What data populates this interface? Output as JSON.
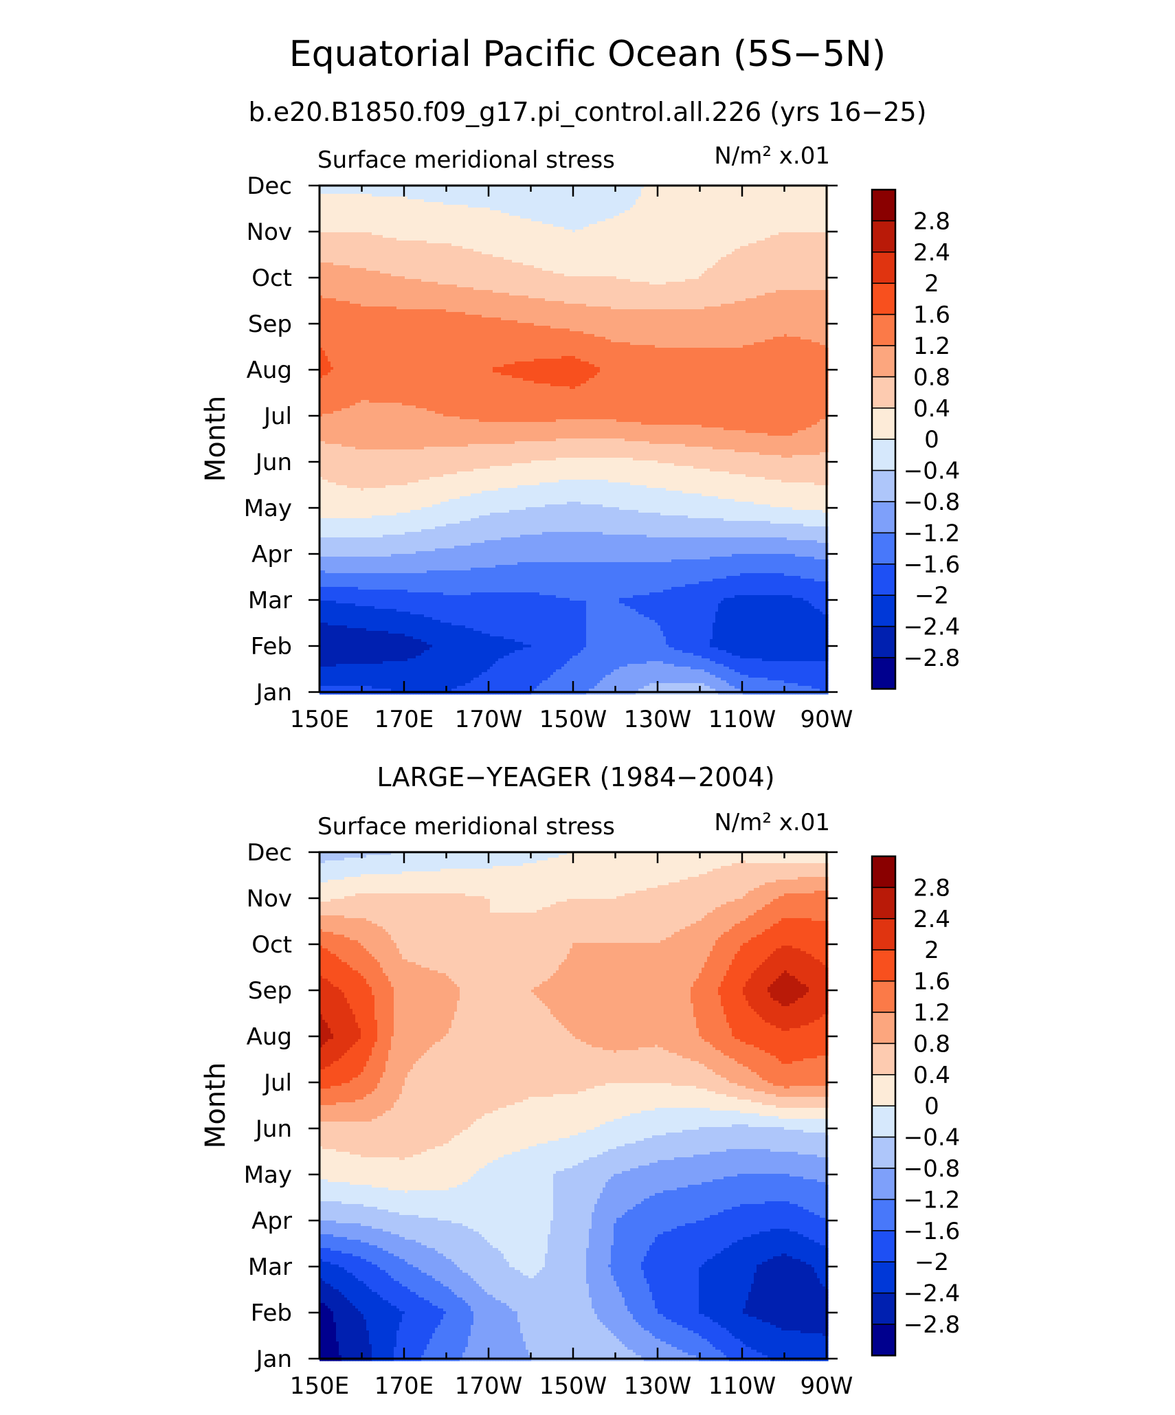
{
  "figure": {
    "title": "Equatorial Pacific Ocean (5S−5N)",
    "subtitle": "b.e20.B1850.f09_g17.pi_control.all.226 (yrs 16−25)"
  },
  "colors": {
    "levels_palette": [
      "#00008e",
      "#0020b0",
      "#0038d8",
      "#1e50f4",
      "#4878fa",
      "#7ea0fa",
      "#aec6fa",
      "#d6e8fc",
      "#fdebd8",
      "#fdcbb0",
      "#fca67e",
      "#fb7a48",
      "#f8501e",
      "#e03410",
      "#b91a08",
      "#8a0000"
    ]
  },
  "chart_data": [
    {
      "type": "heatmap",
      "panel_title": "",
      "inner_title_left": "Surface meridional stress",
      "inner_title_right": "N/m² x.01",
      "ylabel": "Month",
      "x_tick_labels": [
        "150E",
        "170E",
        "170W",
        "150W",
        "130W",
        "110W",
        "90W"
      ],
      "x_tick_values": [
        150,
        170,
        190,
        210,
        230,
        250,
        270
      ],
      "x_range": [
        150,
        270
      ],
      "y_tick_labels": [
        "Jan",
        "Feb",
        "Mar",
        "Apr",
        "May",
        "Jun",
        "Jul",
        "Aug",
        "Sep",
        "Oct",
        "Nov",
        "Dec"
      ],
      "colorbar_labels": [
        "2.8",
        "2.4",
        "2",
        "1.6",
        "1.2",
        "0.8",
        "0.4",
        "0",
        "−0.4",
        "−0.8",
        "−1.2",
        "−1.6",
        "−2",
        "−2.4",
        "−2.8"
      ],
      "levels": [
        -2.8,
        -2.4,
        -2.0,
        -1.6,
        -1.2,
        -0.8,
        -0.4,
        0,
        0.4,
        0.8,
        1.2,
        1.6,
        2.0,
        2.4,
        2.8
      ],
      "grid_lon": [
        150,
        160,
        170,
        180,
        190,
        200,
        210,
        220,
        230,
        240,
        250,
        260,
        270
      ],
      "values": [
        [
          -1.9,
          -1.9,
          -2.0,
          -2.0,
          -1.9,
          -1.6,
          -1.3,
          -1.0,
          -0.6,
          -0.5,
          -1.2,
          -1.4,
          -1.6
        ],
        [
          -2.8,
          -2.7,
          -2.6,
          -2.3,
          -2.1,
          -2.0,
          -1.7,
          -1.4,
          -1.5,
          -1.9,
          -2.3,
          -2.3,
          -2.2
        ],
        [
          -2.0,
          -1.9,
          -1.8,
          -1.7,
          -1.7,
          -1.7,
          -1.6,
          -1.6,
          -1.7,
          -1.9,
          -2.1,
          -2.1,
          -1.9
        ],
        [
          -0.7,
          -0.7,
          -0.8,
          -0.9,
          -1.0,
          -1.1,
          -1.1,
          -1.1,
          -1.1,
          -1.1,
          -1.2,
          -1.2,
          -1.1
        ],
        [
          0.2,
          0.2,
          0.1,
          -0.1,
          -0.3,
          -0.4,
          -0.5,
          -0.4,
          -0.3,
          -0.2,
          -0.1,
          0.0,
          0.1
        ],
        [
          0.5,
          0.7,
          0.7,
          0.6,
          0.5,
          0.4,
          0.3,
          0.3,
          0.4,
          0.5,
          0.6,
          0.7,
          0.7
        ],
        [
          1.2,
          1.1,
          1.1,
          1.2,
          1.3,
          1.3,
          1.3,
          1.3,
          1.4,
          1.4,
          1.5,
          1.6,
          1.2
        ],
        [
          1.7,
          1.4,
          1.5,
          1.5,
          1.6,
          1.7,
          1.8,
          1.5,
          1.4,
          1.4,
          1.4,
          1.5,
          1.3
        ],
        [
          1.5,
          1.4,
          1.4,
          1.4,
          1.3,
          1.2,
          1.1,
          1.0,
          1.0,
          1.0,
          1.0,
          1.1,
          1.1
        ],
        [
          1.0,
          0.9,
          0.8,
          0.7,
          0.6,
          0.5,
          0.4,
          0.4,
          0.3,
          0.4,
          0.6,
          0.7,
          0.7
        ],
        [
          0.4,
          0.4,
          0.3,
          0.3,
          0.2,
          0.1,
          0.0,
          0.1,
          0.1,
          0.2,
          0.3,
          0.4,
          0.4
        ],
        [
          -0.1,
          -0.1,
          -0.1,
          -0.2,
          -0.2,
          -0.3,
          -0.3,
          -0.2,
          0.1,
          0.1,
          0.0,
          0.0,
          0.0
        ]
      ]
    },
    {
      "type": "heatmap",
      "panel_title": "LARGE−YEAGER (1984−2004)",
      "inner_title_left": "Surface meridional stress",
      "inner_title_right": "N/m² x.01",
      "ylabel": "Month",
      "x_tick_labels": [
        "150E",
        "170E",
        "170W",
        "150W",
        "130W",
        "110W",
        "90W"
      ],
      "x_tick_values": [
        150,
        170,
        190,
        210,
        230,
        250,
        270
      ],
      "x_range": [
        150,
        270
      ],
      "y_tick_labels": [
        "Jan",
        "Feb",
        "Mar",
        "Apr",
        "May",
        "Jun",
        "Jul",
        "Aug",
        "Sep",
        "Oct",
        "Nov",
        "Dec"
      ],
      "colorbar_labels": [
        "2.8",
        "2.4",
        "2",
        "1.6",
        "1.2",
        "0.8",
        "0.4",
        "0",
        "−0.4",
        "−0.8",
        "−1.2",
        "−1.6",
        "−2",
        "−2.4",
        "−2.8"
      ],
      "levels": [
        -2.8,
        -2.4,
        -2.0,
        -1.6,
        -1.2,
        -0.8,
        -0.4,
        0,
        0.4,
        0.8,
        1.2,
        1.6,
        2.0,
        2.4,
        2.8
      ],
      "grid_lon": [
        150,
        160,
        170,
        180,
        190,
        200,
        210,
        220,
        230,
        240,
        250,
        260,
        270
      ],
      "values": [
        [
          -3.0,
          -2.6,
          -1.8,
          -1.3,
          -1.0,
          -0.8,
          -0.5,
          -0.6,
          -0.9,
          -1.2,
          -1.8,
          -2.1,
          -2.3
        ],
        [
          -3.0,
          -2.4,
          -2.0,
          -1.6,
          -1.0,
          -0.7,
          -0.6,
          -1.0,
          -1.6,
          -2.0,
          -2.4,
          -2.6,
          -2.5
        ],
        [
          -2.2,
          -1.8,
          -1.3,
          -0.9,
          -0.5,
          -0.3,
          -0.6,
          -1.3,
          -1.8,
          -2.0,
          -2.3,
          -2.6,
          -2.3
        ],
        [
          -0.8,
          -0.7,
          -0.5,
          -0.4,
          -0.3,
          -0.3,
          -0.5,
          -1.2,
          -1.5,
          -1.6,
          -1.8,
          -1.9,
          -1.6
        ],
        [
          0.1,
          0.2,
          0.3,
          0.2,
          -0.1,
          -0.3,
          -0.5,
          -0.8,
          -1.0,
          -1.1,
          -1.2,
          -1.2,
          -1.1
        ],
        [
          0.6,
          0.7,
          0.6,
          0.5,
          0.3,
          0.2,
          0.1,
          -0.1,
          -0.3,
          -0.4,
          -0.5,
          -0.4,
          -0.3
        ],
        [
          1.8,
          1.5,
          0.8,
          0.6,
          0.6,
          0.5,
          0.5,
          0.4,
          0.4,
          0.5,
          0.9,
          1.4,
          1.3
        ],
        [
          2.6,
          2.0,
          0.9,
          0.8,
          0.6,
          0.7,
          0.8,
          1.0,
          0.9,
          1.2,
          1.7,
          1.9,
          1.8
        ],
        [
          2.2,
          1.8,
          1.0,
          0.9,
          0.6,
          0.8,
          0.9,
          0.9,
          0.9,
          1.3,
          2.0,
          2.7,
          2.2
        ],
        [
          1.6,
          1.2,
          0.7,
          0.6,
          0.4,
          0.6,
          0.8,
          0.8,
          0.8,
          1.0,
          1.6,
          2.0,
          1.8
        ],
        [
          0.3,
          0.5,
          0.5,
          0.5,
          0.4,
          0.3,
          0.4,
          0.4,
          0.5,
          0.6,
          0.8,
          1.3,
          1.4
        ],
        [
          -0.6,
          -0.5,
          -0.4,
          -0.3,
          -0.2,
          -0.1,
          0.0,
          0.1,
          0.1,
          0.2,
          0.3,
          0.1,
          0.1
        ]
      ]
    }
  ]
}
